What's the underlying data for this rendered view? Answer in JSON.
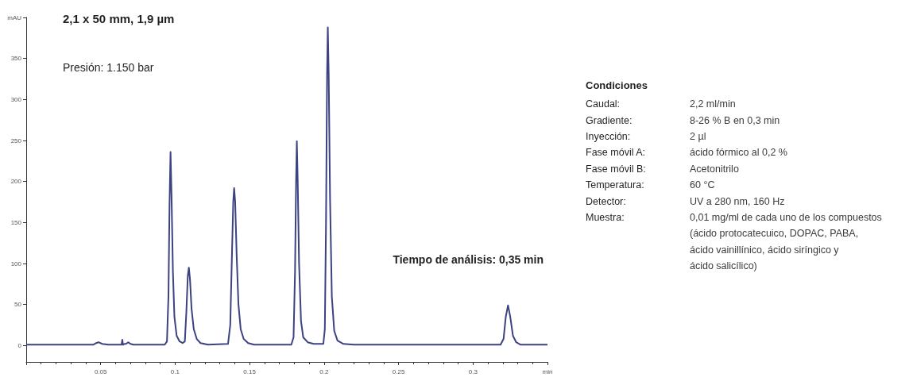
{
  "chart_data": {
    "type": "line",
    "title": "2,1 x 50 mm, 1,9 µm",
    "annotations": [
      "Presión: 1.150 bar",
      "Tiempo de análisis: 0,35 min",
      "Condiciones",
      "Caudal:",
      "2,2 ml/min",
      "Gradiente:",
      "8-26 % B en 0,3 min",
      "Inyección:",
      "2 µl",
      "Fase móvil A:",
      "ácido fórmico al 0,2 %",
      "Fase móvil B:",
      "Acetonitrilo",
      "Temperatura:",
      "60 °C",
      "Detector:",
      "UV a 280 nm, 160 Hz",
      "Muestra:",
      "0,01 mg/ml de cada uno de los compuestos (ácido protocatecuico, DOPAC, PABA, ácido vainillínico, ácido siríngico y ácido salicílico)"
    ],
    "xlim": [
      0,
      0.35
    ],
    "xticks": [
      {
        "value": 0,
        "label": null
      },
      0.05,
      0.1,
      0.15,
      0.2,
      0.25,
      0.3,
      {
        "value": 0.35,
        "label": "min"
      }
    ],
    "ylim": [
      -20,
      400
    ],
    "yticks": [
      0,
      50,
      100,
      150,
      200,
      250,
      300,
      350,
      {
        "value": 400,
        "label": "mAU"
      }
    ],
    "grid": false,
    "marker": "none",
    "line_style": "solid",
    "series": [
      {
        "color": "#3d4282",
        "x": [
          0,
          0.045,
          0.047,
          0.0485,
          0.051,
          0.055,
          0.064,
          0.0645,
          0.065,
          0.066,
          0.067,
          0.0685,
          0.07,
          0.072,
          0.093,
          0.0945,
          0.0955,
          0.0962,
          0.0969,
          0.0976,
          0.0985,
          0.0995,
          0.101,
          0.103,
          0.105,
          0.1065,
          0.1075,
          0.1085,
          0.1092,
          0.11,
          0.111,
          0.1125,
          0.1145,
          0.117,
          0.122,
          0.1355,
          0.137,
          0.138,
          0.139,
          0.1396,
          0.1403,
          0.1413,
          0.1425,
          0.144,
          0.146,
          0.149,
          0.153,
          0.178,
          0.1795,
          0.1805,
          0.1812,
          0.1817,
          0.1823,
          0.1832,
          0.1845,
          0.186,
          0.189,
          0.193,
          0.1995,
          0.2005,
          0.2013,
          0.202,
          0.2025,
          0.2031,
          0.204,
          0.2052,
          0.2068,
          0.209,
          0.213,
          0.22,
          0.3185,
          0.3205,
          0.322,
          0.3235,
          0.325,
          0.3268,
          0.329,
          0.332,
          0.35
        ],
        "values": [
          1,
          1,
          3,
          4,
          2,
          1,
          1,
          7,
          1,
          2,
          2,
          4,
          2,
          1,
          1,
          5,
          60,
          170,
          236,
          180,
          90,
          35,
          12,
          5,
          3,
          5,
          40,
          85,
          95,
          80,
          45,
          20,
          8,
          3,
          1,
          2,
          25,
          100,
          175,
          192,
          175,
          110,
          50,
          20,
          8,
          3,
          1,
          1,
          10,
          90,
          200,
          249,
          200,
          100,
          30,
          10,
          4,
          2,
          2,
          20,
          150,
          330,
          388,
          330,
          180,
          60,
          18,
          6,
          2,
          1,
          1,
          8,
          35,
          49,
          35,
          12,
          4,
          1,
          1
        ]
      }
    ]
  }
}
